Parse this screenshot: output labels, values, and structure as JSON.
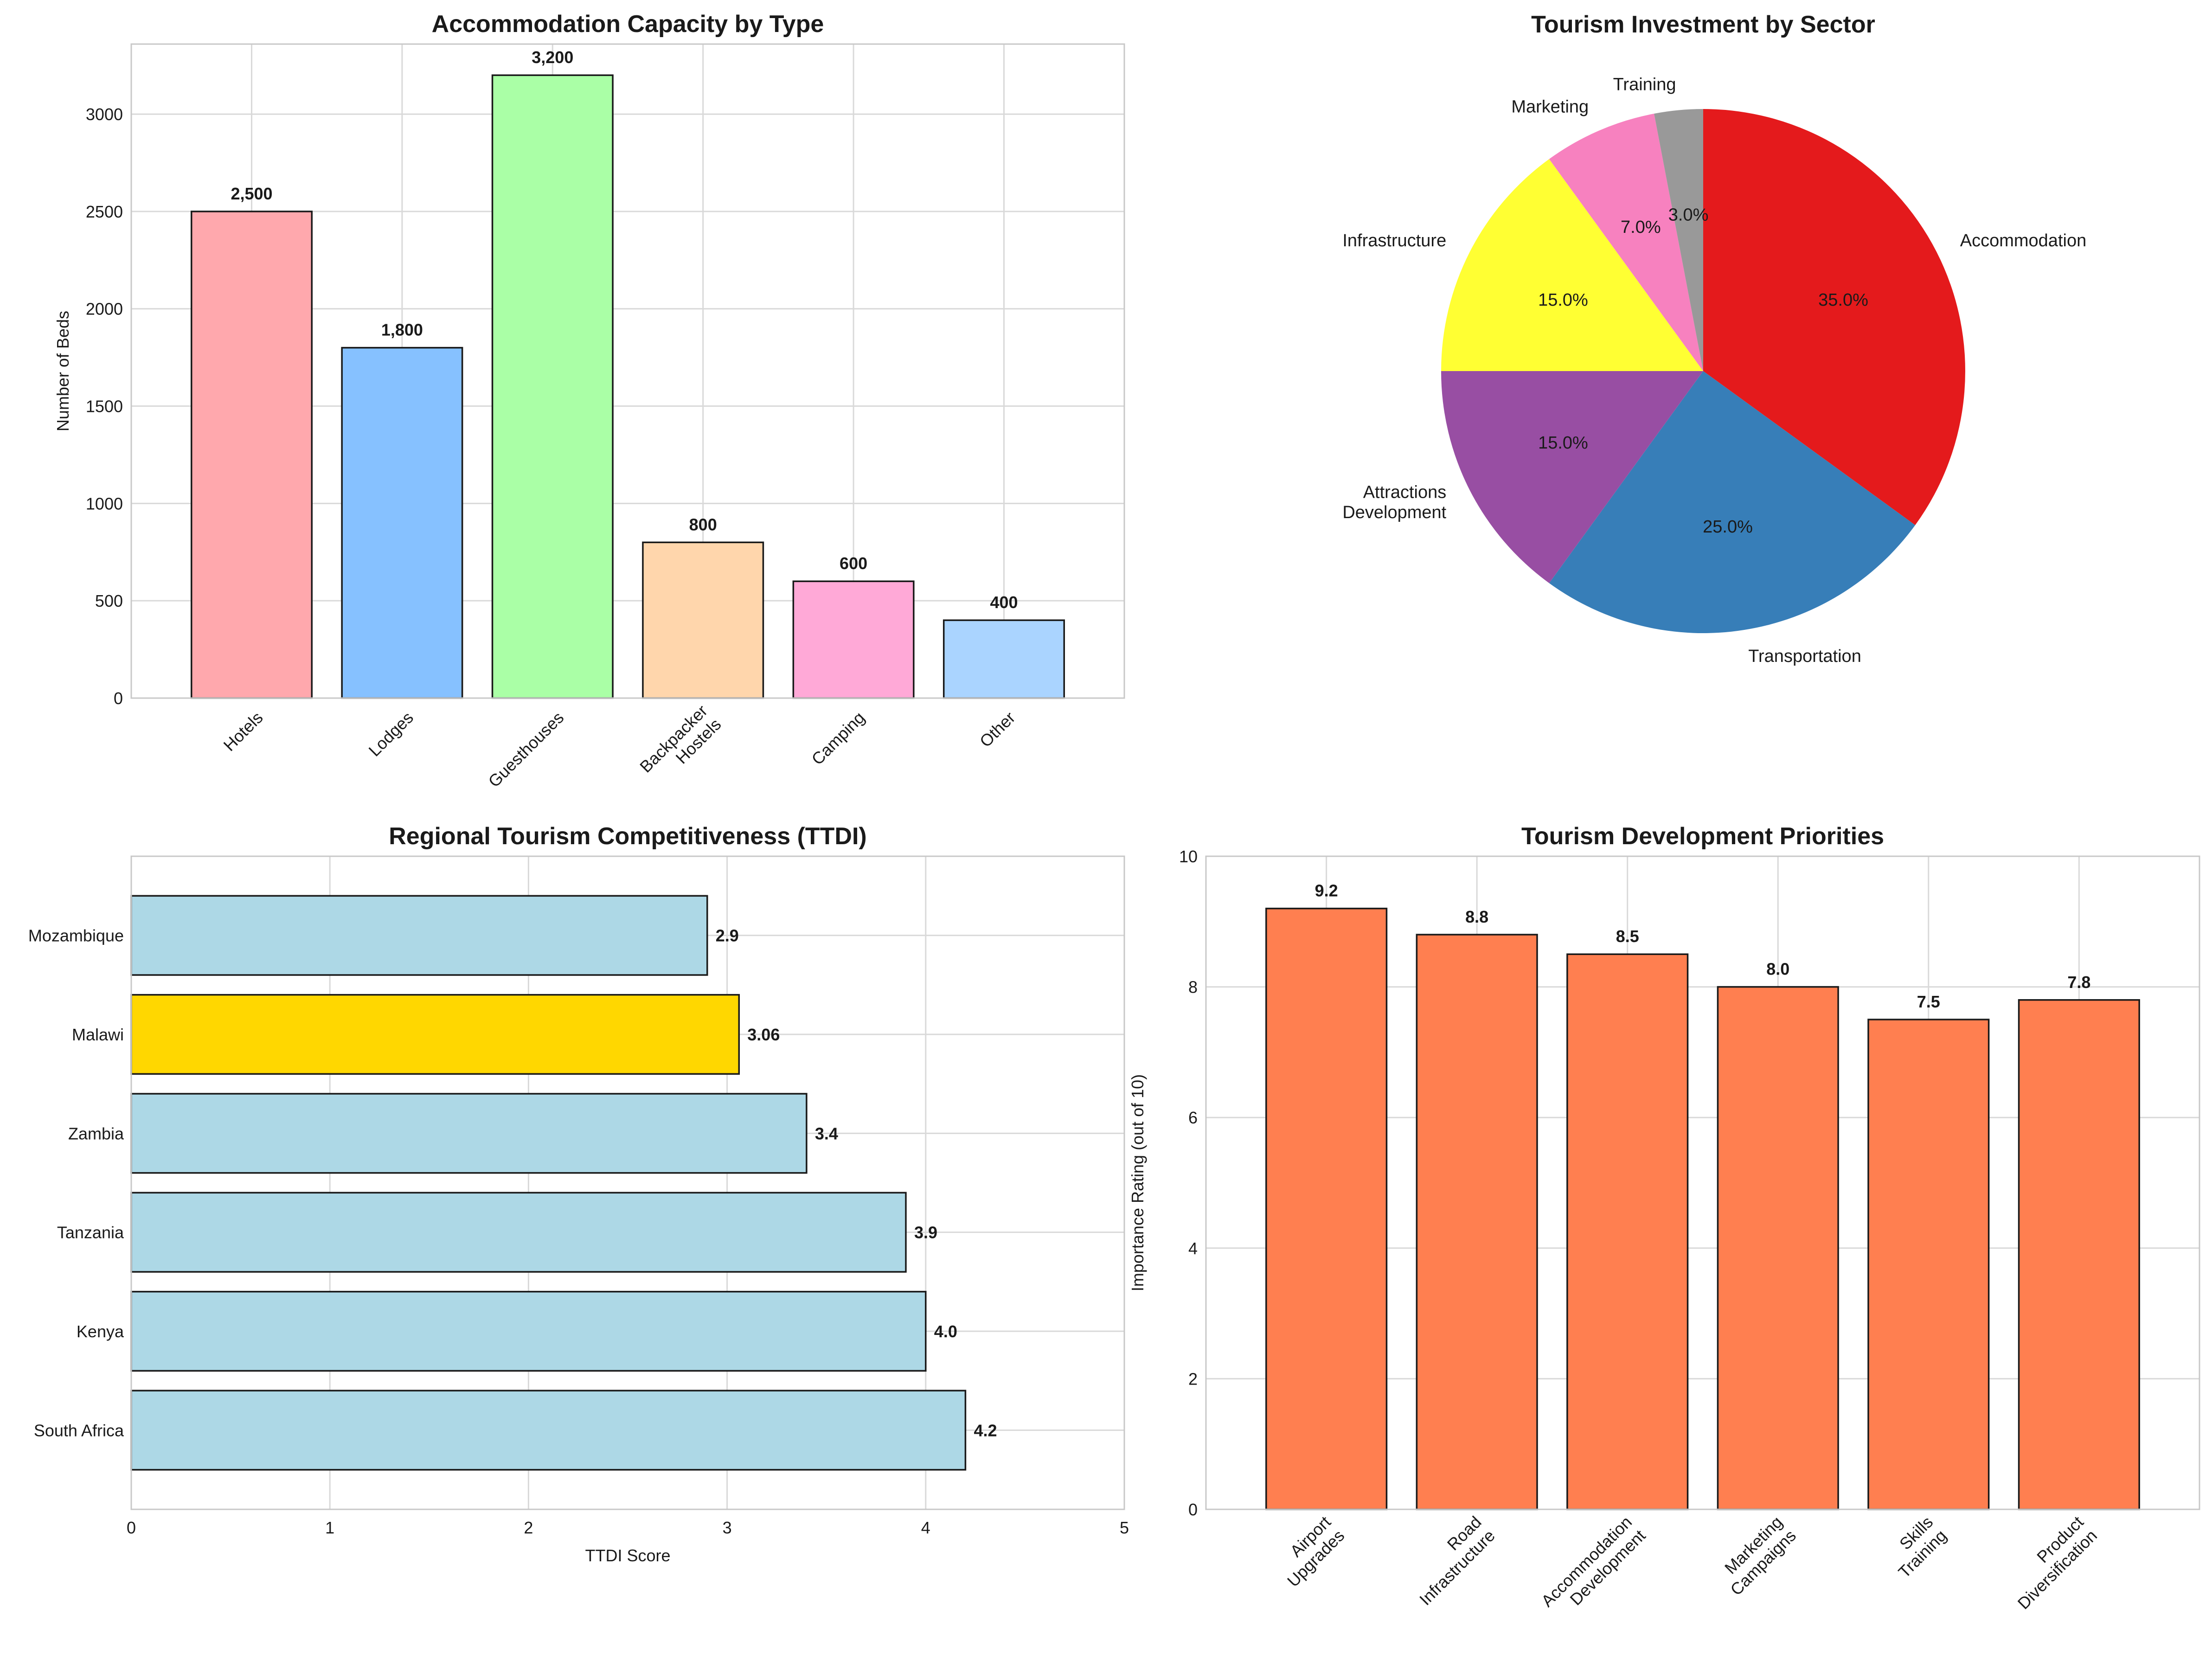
{
  "chart_data": [
    {
      "type": "bar",
      "title": "Accommodation Capacity by Type",
      "ylabel": "Number of Beds",
      "xlabel": "",
      "categories": [
        "Hotels",
        "Lodges",
        "Guesthouses",
        "Backpacker\nHostels",
        "Camping",
        "Other"
      ],
      "values": [
        2500,
        1800,
        3200,
        800,
        600,
        400
      ],
      "value_labels": [
        "2,500",
        "1,800",
        "3,200",
        "800",
        "600",
        "400"
      ],
      "colors": [
        "#FFA8AD",
        "#86C1FF",
        "#AAFFA6",
        "#FFD6AC",
        "#FFA9D7",
        "#AAD4FF"
      ],
      "ylim": [
        0,
        3360
      ],
      "yticks": [
        0,
        500,
        1000,
        1500,
        2000,
        2500,
        3000
      ],
      "grid": true
    },
    {
      "type": "pie",
      "title": "Tourism Investment by Sector",
      "labels": [
        "Accommodation",
        "Transportation",
        "Attractions\nDevelopment",
        "Infrastructure",
        "Marketing",
        "Training"
      ],
      "values": [
        35,
        25,
        15,
        15,
        7,
        3
      ],
      "pct_labels": [
        "35.0%",
        "25.0%",
        "15.0%",
        "15.0%",
        "7.0%",
        "3.0%"
      ],
      "colors": [
        "#E41A1C",
        "#377EB8",
        "#984EA3",
        "#FFFF33",
        "#F781BF",
        "#999999"
      ]
    },
    {
      "type": "bar",
      "orientation": "horizontal",
      "title": "Regional Tourism Competitiveness (TTDI)",
      "xlabel": "TTDI Score",
      "ylabel": "",
      "categories": [
        "South Africa",
        "Kenya",
        "Tanzania",
        "Zambia",
        "Malawi",
        "Mozambique"
      ],
      "values": [
        4.2,
        4.0,
        3.9,
        3.4,
        3.06,
        2.9
      ],
      "value_labels": [
        "4.2",
        "4.0",
        "3.9",
        "3.4",
        "3.06",
        "2.9"
      ],
      "colors": [
        "#ADD8E6",
        "#ADD8E6",
        "#ADD8E6",
        "#ADD8E6",
        "#FFD700",
        "#ADD8E6"
      ],
      "xlim": [
        0,
        5
      ],
      "xticks": [
        0,
        1,
        2,
        3,
        4,
        5
      ],
      "grid": true
    },
    {
      "type": "bar",
      "title": "Tourism Development Priorities",
      "ylabel": "Importance Rating (out of 10)",
      "xlabel": "",
      "categories": [
        "Airport\nUpgrades",
        "Road\nInfrastructure",
        "Accommodation\nDevelopment",
        "Marketing\nCampaigns",
        "Skills\nTraining",
        "Product\nDiversification"
      ],
      "values": [
        9.2,
        8.8,
        8.5,
        8.0,
        7.5,
        7.8
      ],
      "value_labels": [
        "9.2",
        "8.8",
        "8.5",
        "8.0",
        "7.5",
        "7.8"
      ],
      "color": "#FF7F50",
      "ylim": [
        0,
        10
      ],
      "yticks": [
        0,
        2,
        4,
        6,
        8,
        10
      ],
      "grid": true
    }
  ]
}
